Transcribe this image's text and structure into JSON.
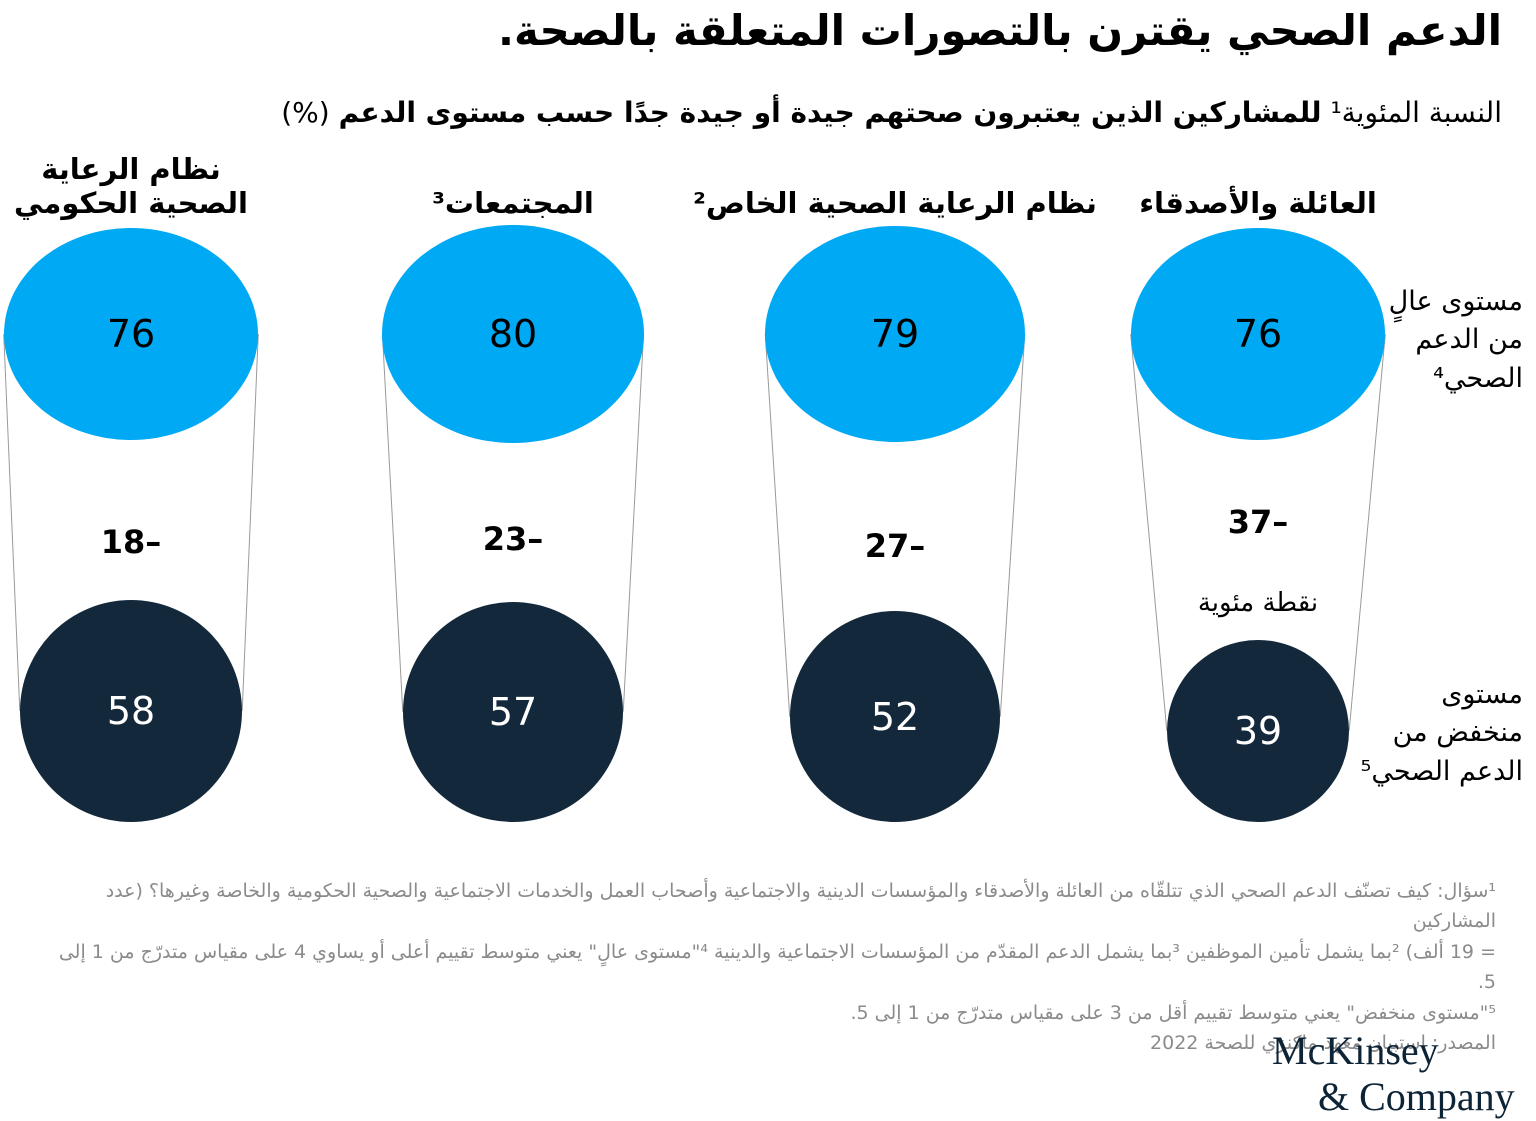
{
  "header": {
    "title": "الدعم الصحي يقترن بالتصورات المتعلقة بالصحة.",
    "subtitle": {
      "label": "النسبة المئوية¹",
      "bold": "للمشاركين الذين يعتبرون صحتهم جيدة أو جيدة جدًا حسب مستوى الدعم",
      "unit": "(%)"
    }
  },
  "chart_data": {
    "type": "proportional-area-funnel",
    "direction": "rtl",
    "categories": [
      "العائلة والأصدقاء",
      "نظام الرعاية الصحية الخاص²",
      "المجتمعات³",
      "نظام الرعاية الصحية الحكومي"
    ],
    "series": [
      {
        "name": "مستوى عالٍ من الدعم الصحي⁴",
        "color": "#00a9f4",
        "values": [
          76,
          79,
          80,
          76
        ]
      },
      {
        "name": "مستوى منخفض من الدعم الصحي⁵",
        "color": "#13293b",
        "values": [
          39,
          52,
          57,
          58
        ]
      }
    ],
    "differences": [
      "37–",
      "27–",
      "23–",
      "18–"
    ],
    "difference_unit": "نقطة مئوية",
    "legend_high": "مستوى عالٍ\nمن الدعم\nالصحي⁴",
    "legend_low": "مستوى\nمنخفض من\nالدعم الصحي⁵",
    "colors": {
      "high": "#00a9f4",
      "low": "#13293b",
      "connector": "#9a9a9a"
    }
  },
  "footnotes": [
    "¹سؤال: كيف تصنّف الدعم الصحي الذي تتلقّاه من العائلة والأصدقاء والمؤسسات الدينية والاجتماعية وأصحاب العمل والخدمات الاجتماعية والصحية الحكومية والخاصة وغيرها؟ (عدد المشاركين",
    "= 19 ألف) ²بما يشمل تأمين الموظفين ³بما يشمل الدعم المقدّم من المؤسسات الاجتماعية والدينية ⁴\"مستوى عالٍ\" يعني متوسط تقييم أعلى أو يساوي 4 على مقياس متدرّج من 1 إلى 5.",
    "⁵\"مستوى منخفض\" يعني متوسط تقييم أقل من 3 على مقياس متدرّج من 1 إلى 5.",
    "المصدر: استبيان معهد ماكنزي للصحة 2022"
  ],
  "logo": {
    "line1": "McKinsey",
    "line2": "& Company"
  }
}
